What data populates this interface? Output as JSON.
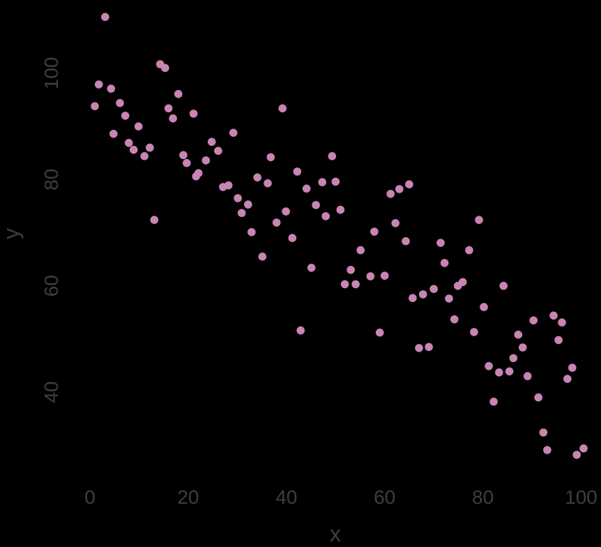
{
  "chart_data": {
    "type": "scatter",
    "title": "",
    "xlabel": "x",
    "ylabel": "y",
    "x_ticks": [
      0,
      20,
      40,
      60,
      80,
      100
    ],
    "y_ticks": [
      40,
      60,
      80,
      100
    ],
    "xlim": [
      -4,
      105
    ],
    "ylim": [
      24,
      115
    ],
    "grid": false,
    "legend": "none",
    "background_color": "#000000",
    "point_color": "#C884B2",
    "tick_label_color": "#3E3E3E",
    "axis_title_color": "#3E3E3E",
    "y_tick_label_rotation": 90,
    "points": [
      [
        3.1,
        110.6
      ],
      [
        14.3,
        101.7
      ],
      [
        15.3,
        101.0
      ],
      [
        1.8,
        97.9
      ],
      [
        4.3,
        97.1
      ],
      [
        18.0,
        96.1
      ],
      [
        1.0,
        93.8
      ],
      [
        6.1,
        94.4
      ],
      [
        16.0,
        93.4
      ],
      [
        21.1,
        92.4
      ],
      [
        7.2,
        92.0
      ],
      [
        16.9,
        91.5
      ],
      [
        9.9,
        90.0
      ],
      [
        4.8,
        88.6
      ],
      [
        29.2,
        88.8
      ],
      [
        7.9,
        86.9
      ],
      [
        8.9,
        85.6
      ],
      [
        12.2,
        86.0
      ],
      [
        24.8,
        87.1
      ],
      [
        26.1,
        85.4
      ],
      [
        11.1,
        84.4
      ],
      [
        19.0,
        84.6
      ],
      [
        19.7,
        83.1
      ],
      [
        23.6,
        83.6
      ],
      [
        22.1,
        81.2
      ],
      [
        21.6,
        80.6
      ],
      [
        27.1,
        78.6
      ],
      [
        28.2,
        78.9
      ],
      [
        30.1,
        76.5
      ],
      [
        32.2,
        75.3
      ],
      [
        30.9,
        73.7
      ],
      [
        13.1,
        72.4
      ],
      [
        39.2,
        93.4
      ],
      [
        36.8,
        84.2
      ],
      [
        49.3,
        84.4
      ],
      [
        42.2,
        81.5
      ],
      [
        34.1,
        80.4
      ],
      [
        36.2,
        79.3
      ],
      [
        44.1,
        78.3
      ],
      [
        47.3,
        79.5
      ],
      [
        50.0,
        79.6
      ],
      [
        39.9,
        74.0
      ],
      [
        46.0,
        75.2
      ],
      [
        48.0,
        73.1
      ],
      [
        51.0,
        74.3
      ],
      [
        38.0,
        71.9
      ],
      [
        32.9,
        70.1
      ],
      [
        41.2,
        69.0
      ],
      [
        61.2,
        77.3
      ],
      [
        63.0,
        78.2
      ],
      [
        65.0,
        79.1
      ],
      [
        62.2,
        71.8
      ],
      [
        57.9,
        70.2
      ],
      [
        64.3,
        68.4
      ],
      [
        55.1,
        66.7
      ],
      [
        35.1,
        65.5
      ],
      [
        45.1,
        63.4
      ],
      [
        53.1,
        63.0
      ],
      [
        51.9,
        60.3
      ],
      [
        54.1,
        60.3
      ],
      [
        57.1,
        61.8
      ],
      [
        60.0,
        61.9
      ],
      [
        65.7,
        57.7
      ],
      [
        67.8,
        58.4
      ],
      [
        79.2,
        72.4
      ],
      [
        71.4,
        68.1
      ],
      [
        77.2,
        66.7
      ],
      [
        72.2,
        64.3
      ],
      [
        75.9,
        60.7
      ],
      [
        74.9,
        60.0
      ],
      [
        70.0,
        59.4
      ],
      [
        73.1,
        57.6
      ],
      [
        84.2,
        60.0
      ],
      [
        80.2,
        56.0
      ],
      [
        74.2,
        53.7
      ],
      [
        90.3,
        53.5
      ],
      [
        94.4,
        54.4
      ],
      [
        96.1,
        53.1
      ],
      [
        42.9,
        51.6
      ],
      [
        59.0,
        51.2
      ],
      [
        67.0,
        48.3
      ],
      [
        69.0,
        48.5
      ],
      [
        78.2,
        51.3
      ],
      [
        87.2,
        50.8
      ],
      [
        88.1,
        48.4
      ],
      [
        86.2,
        46.4
      ],
      [
        81.2,
        44.9
      ],
      [
        83.3,
        43.7
      ],
      [
        85.4,
        43.9
      ],
      [
        89.1,
        43.0
      ],
      [
        95.4,
        49.8
      ],
      [
        98.2,
        44.6
      ],
      [
        97.2,
        42.5
      ],
      [
        91.3,
        39.0
      ],
      [
        82.2,
        38.2
      ],
      [
        92.3,
        32.4
      ],
      [
        93.1,
        29.1
      ],
      [
        100.5,
        29.4
      ],
      [
        99.1,
        28.2
      ]
    ]
  }
}
